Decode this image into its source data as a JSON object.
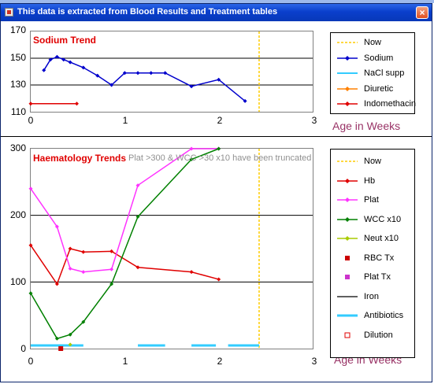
{
  "window": {
    "title": "This data is extracted from Blood Results and Treatment tables"
  },
  "sodium": {
    "title": "Sodium Trend",
    "xlabel": "Age in Weeks",
    "legend": [
      {
        "label": "Now",
        "color": "#ffcc00",
        "style": "dashed"
      },
      {
        "label": "Sodium",
        "color": "#0000cc",
        "style": "line-diamond"
      },
      {
        "label": "NaCl supp",
        "color": "#33ccff",
        "style": "line"
      },
      {
        "label": "Diuretic",
        "color": "#ff8000",
        "style": "line-diamond"
      },
      {
        "label": "Indomethacin",
        "color": "#e00000",
        "style": "line-diamond"
      }
    ]
  },
  "haem": {
    "title": "Haematology Trends",
    "note": "Plat >300 & WCC >30 x10 have been truncated",
    "xlabel": "Age in Weeks",
    "legend": [
      {
        "label": "Now",
        "color": "#ffcc00",
        "style": "dashed"
      },
      {
        "label": "Hb",
        "color": "#e00000",
        "style": "line-diamond"
      },
      {
        "label": "Plat",
        "color": "#ff33ff",
        "style": "line-diamond"
      },
      {
        "label": "WCC x10",
        "color": "#008000",
        "style": "line-diamond"
      },
      {
        "label": "Neut x10",
        "color": "#aacc00",
        "style": "line-diamond"
      },
      {
        "label": "RBC Tx",
        "color": "#cc0000",
        "style": "square"
      },
      {
        "label": "Plat Tx",
        "color": "#cc33cc",
        "style": "square"
      },
      {
        "label": "Iron",
        "color": "#606060",
        "style": "line"
      },
      {
        "label": "Antibiotics",
        "color": "#33ccff",
        "style": "thickline"
      },
      {
        "label": "Dilution",
        "color": "#e00000",
        "style": "opensquare"
      }
    ]
  },
  "chart_data": [
    {
      "type": "line",
      "title": "Sodium Trend",
      "xlabel": "Age in Weeks",
      "ylabel": "",
      "xlim": [
        0,
        3
      ],
      "ylim": [
        110,
        170
      ],
      "xticks": [
        "0",
        "1",
        "2",
        "3"
      ],
      "yticks": [
        "110",
        "130",
        "150",
        "170"
      ],
      "grid": true,
      "legend_position": "right",
      "now_x": 2.43,
      "series": [
        {
          "name": "Sodium",
          "color": "#0000cc",
          "x": [
            0.14,
            0.21,
            0.28,
            0.35,
            0.42,
            0.56,
            0.71,
            0.86,
            1.0,
            1.14,
            1.28,
            1.43,
            1.71,
            2.0,
            2.28
          ],
          "y": [
            141,
            149,
            151,
            149,
            147,
            143,
            137,
            130,
            139,
            139,
            139,
            139,
            129,
            134,
            118
          ]
        },
        {
          "name": "Indomethacin",
          "color": "#e00000",
          "x": [
            0.0,
            0.49
          ],
          "y": [
            116,
            116
          ]
        }
      ]
    },
    {
      "type": "line",
      "title": "Haematology Trends",
      "xlabel": "Age in Weeks",
      "ylabel": "",
      "xlim": [
        0,
        3
      ],
      "ylim": [
        0,
        300
      ],
      "xticks": [
        "0",
        "1",
        "2",
        "3"
      ],
      "yticks": [
        "0",
        "100",
        "200",
        "300"
      ],
      "grid": true,
      "legend_position": "right",
      "now_x": 2.43,
      "series": [
        {
          "name": "Hb",
          "color": "#e00000",
          "x": [
            0.0,
            0.28,
            0.42,
            0.56,
            0.86,
            1.14,
            1.71,
            2.0
          ],
          "y": [
            155,
            97,
            150,
            145,
            146,
            122,
            115,
            104
          ]
        },
        {
          "name": "Plat",
          "color": "#ff33ff",
          "x": [
            0.0,
            0.28,
            0.42,
            0.56,
            0.86,
            1.14,
            1.71,
            2.0
          ],
          "y": [
            240,
            183,
            120,
            115,
            119,
            245,
            300,
            300
          ]
        },
        {
          "name": "WCC x10",
          "color": "#008000",
          "x": [
            0.0,
            0.28,
            0.42,
            0.56,
            0.86,
            1.14,
            1.71,
            2.0
          ],
          "y": [
            83,
            15,
            21,
            40,
            97,
            198,
            284,
            300
          ]
        },
        {
          "name": "Neut x10",
          "color": "#aacc00",
          "x": [
            0.42
          ],
          "y": [
            6
          ]
        }
      ],
      "markers": [
        {
          "name": "RBC Tx",
          "x": [
            0.32
          ],
          "y": [
            0
          ]
        }
      ],
      "bars": [
        {
          "name": "Antibiotics",
          "color": "#33ccff",
          "segments": [
            [
              0.0,
              0.56
            ],
            [
              1.14,
              1.43
            ],
            [
              1.71,
              1.97
            ],
            [
              2.1,
              2.43
            ]
          ],
          "y": 4
        }
      ]
    }
  ]
}
